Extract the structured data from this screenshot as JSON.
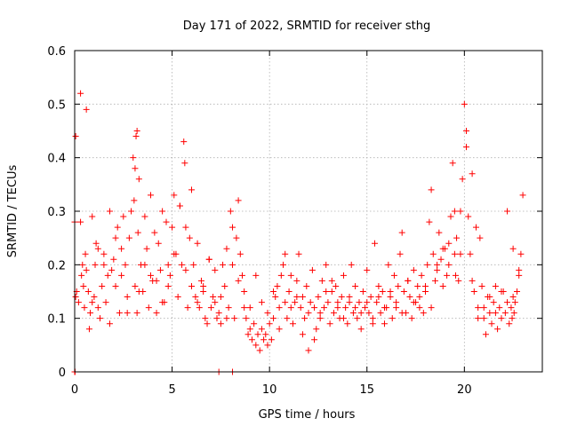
{
  "chart_data": {
    "type": "scatter",
    "title": "Day 171 of 2022, SRMTID for receiver sthg",
    "xlabel": "GPS time / hours",
    "ylabel": "SRMTID / TECUs",
    "xlim": [
      0,
      24
    ],
    "ylim": [
      0,
      0.6
    ],
    "xticks": [
      0,
      5,
      10,
      15,
      20
    ],
    "xtick_labels": [
      "0",
      "5",
      "10",
      "15",
      "20"
    ],
    "yticks": [
      0,
      0.1,
      0.2,
      0.3,
      0.4,
      0.5,
      0.6
    ],
    "ytick_labels": [
      "0",
      "0.1",
      "0.2",
      "0.3",
      "0.4",
      "0.5",
      "0.6"
    ],
    "grid": true,
    "marker": "+",
    "color": "#ff0000",
    "series": [
      {
        "name": "SRMTID",
        "x": [
          0.0,
          0.05,
          0.1,
          0.2,
          0.3,
          0.35,
          0.4,
          0.45,
          0.5,
          0.55,
          0.6,
          0.7,
          0.75,
          0.8,
          0.9,
          1.0,
          1.05,
          1.1,
          1.2,
          1.3,
          1.4,
          1.5,
          1.6,
          1.7,
          1.8,
          1.9,
          2.0,
          2.1,
          2.2,
          2.3,
          2.4,
          2.5,
          2.6,
          2.7,
          2.8,
          2.9,
          3.0,
          3.05,
          3.1,
          3.15,
          3.2,
          3.25,
          3.3,
          3.4,
          3.5,
          3.6,
          3.7,
          3.8,
          3.9,
          4.0,
          4.1,
          4.2,
          4.3,
          4.4,
          4.5,
          4.6,
          4.7,
          4.8,
          4.9,
          5.0,
          5.1,
          5.2,
          5.3,
          5.4,
          5.5,
          5.6,
          5.65,
          5.7,
          5.8,
          5.9,
          6.0,
          6.1,
          6.2,
          6.3,
          6.4,
          6.5,
          6.6,
          6.7,
          6.8,
          6.9,
          7.0,
          7.1,
          7.2,
          7.3,
          7.4,
          7.5,
          7.6,
          7.7,
          7.8,
          7.9,
          8.0,
          8.1,
          8.2,
          8.3,
          8.4,
          8.5,
          8.6,
          8.7,
          8.8,
          8.9,
          9.0,
          9.1,
          9.2,
          9.3,
          9.4,
          9.5,
          9.6,
          9.7,
          9.8,
          9.9,
          10.0,
          10.1,
          10.2,
          10.3,
          10.4,
          10.5,
          10.6,
          10.7,
          10.8,
          10.9,
          11.0,
          11.1,
          11.2,
          11.3,
          11.4,
          11.5,
          11.6,
          11.7,
          11.8,
          11.9,
          12.0,
          12.1,
          12.2,
          12.3,
          12.4,
          12.5,
          12.6,
          12.7,
          12.8,
          12.9,
          13.0,
          13.1,
          13.2,
          13.3,
          13.4,
          13.5,
          13.6,
          13.7,
          13.8,
          13.9,
          14.0,
          14.1,
          14.2,
          14.3,
          14.4,
          14.5,
          14.6,
          14.7,
          14.8,
          14.9,
          15.0,
          15.1,
          15.2,
          15.3,
          15.4,
          15.5,
          15.6,
          15.7,
          15.8,
          15.9,
          16.0,
          16.1,
          16.2,
          16.3,
          16.4,
          16.5,
          16.6,
          16.7,
          16.8,
          16.9,
          17.0,
          17.1,
          17.2,
          17.3,
          17.4,
          17.5,
          17.6,
          17.7,
          17.8,
          17.9,
          18.0,
          18.1,
          18.2,
          18.3,
          18.4,
          18.5,
          18.6,
          18.7,
          18.8,
          18.9,
          19.0,
          19.1,
          19.2,
          19.3,
          19.4,
          19.5,
          19.55,
          19.6,
          19.7,
          19.8,
          19.9,
          20.0,
          20.1,
          20.2,
          20.3,
          20.4,
          20.5,
          20.6,
          20.7,
          20.8,
          20.9,
          21.0,
          21.1,
          21.2,
          21.3,
          21.4,
          21.5,
          21.6,
          21.7,
          21.8,
          21.9,
          22.0,
          22.1,
          22.2,
          22.3,
          22.4,
          22.45,
          22.5,
          22.55,
          22.6,
          22.7,
          22.8,
          22.9,
          23.0,
          0.05,
          0.3,
          0.6,
          0.9,
          1.2,
          1.5,
          1.8,
          2.1,
          2.4,
          2.7,
          3.1,
          3.2,
          3.3,
          3.6,
          3.9,
          4.2,
          4.5,
          4.8,
          5.1,
          5.4,
          5.7,
          6.0,
          6.3,
          6.6,
          6.9,
          7.2,
          7.5,
          7.8,
          8.1,
          8.4,
          8.7,
          9.0,
          9.3,
          9.6,
          9.9,
          10.2,
          10.5,
          10.8,
          11.1,
          11.4,
          11.7,
          12.0,
          12.3,
          12.6,
          12.9,
          13.2,
          13.5,
          13.8,
          14.1,
          14.4,
          14.7,
          15.0,
          15.3,
          15.6,
          15.9,
          16.2,
          16.5,
          16.8,
          17.1,
          17.4,
          17.7,
          18.0,
          18.3,
          18.6,
          18.9,
          19.2,
          19.5,
          19.8,
          20.1,
          20.4,
          20.7,
          21.0,
          21.3,
          21.6,
          21.9,
          22.2,
          22.5,
          22.8,
          0.0,
          0.02,
          7.4,
          8.1
        ],
        "y": [
          0.28,
          0.14,
          0.15,
          0.13,
          0.28,
          0.18,
          0.2,
          0.16,
          0.12,
          0.22,
          0.19,
          0.15,
          0.08,
          0.11,
          0.13,
          0.14,
          0.2,
          0.24,
          0.12,
          0.1,
          0.16,
          0.22,
          0.13,
          0.18,
          0.09,
          0.19,
          0.21,
          0.16,
          0.27,
          0.11,
          0.23,
          0.29,
          0.2,
          0.14,
          0.25,
          0.3,
          0.4,
          0.32,
          0.38,
          0.44,
          0.45,
          0.26,
          0.36,
          0.2,
          0.15,
          0.29,
          0.23,
          0.12,
          0.33,
          0.17,
          0.26,
          0.11,
          0.24,
          0.19,
          0.3,
          0.13,
          0.28,
          0.2,
          0.18,
          0.27,
          0.33,
          0.22,
          0.14,
          0.31,
          0.2,
          0.43,
          0.39,
          0.19,
          0.12,
          0.25,
          0.16,
          0.2,
          0.14,
          0.13,
          0.12,
          0.17,
          0.15,
          0.1,
          0.09,
          0.21,
          0.12,
          0.14,
          0.13,
          0.1,
          0.11,
          0.09,
          0.2,
          0.16,
          0.1,
          0.12,
          0.3,
          0.27,
          0.1,
          0.25,
          0.32,
          0.22,
          0.18,
          0.12,
          0.1,
          0.07,
          0.08,
          0.06,
          0.09,
          0.05,
          0.07,
          0.04,
          0.08,
          0.06,
          0.07,
          0.05,
          0.09,
          0.06,
          0.1,
          0.14,
          0.16,
          0.12,
          0.18,
          0.2,
          0.13,
          0.1,
          0.15,
          0.12,
          0.09,
          0.13,
          0.17,
          0.22,
          0.12,
          0.14,
          0.1,
          0.16,
          0.11,
          0.13,
          0.19,
          0.12,
          0.08,
          0.14,
          0.1,
          0.17,
          0.12,
          0.2,
          0.13,
          0.09,
          0.15,
          0.11,
          0.16,
          0.12,
          0.1,
          0.14,
          0.18,
          0.12,
          0.09,
          0.13,
          0.2,
          0.11,
          0.16,
          0.1,
          0.13,
          0.08,
          0.15,
          0.12,
          0.19,
          0.11,
          0.14,
          0.1,
          0.24,
          0.13,
          0.16,
          0.11,
          0.15,
          0.09,
          0.12,
          0.2,
          0.14,
          0.1,
          0.18,
          0.13,
          0.16,
          0.22,
          0.26,
          0.15,
          0.11,
          0.17,
          0.14,
          0.1,
          0.19,
          0.13,
          0.16,
          0.12,
          0.18,
          0.11,
          0.15,
          0.2,
          0.28,
          0.34,
          0.22,
          0.17,
          0.19,
          0.26,
          0.21,
          0.16,
          0.23,
          0.18,
          0.24,
          0.29,
          0.39,
          0.22,
          0.18,
          0.25,
          0.17,
          0.3,
          0.36,
          0.5,
          0.42,
          0.29,
          0.22,
          0.37,
          0.15,
          0.27,
          0.12,
          0.25,
          0.16,
          0.1,
          0.07,
          0.14,
          0.11,
          0.09,
          0.13,
          0.16,
          0.08,
          0.12,
          0.1,
          0.15,
          0.11,
          0.13,
          0.09,
          0.12,
          0.1,
          0.14,
          0.11,
          0.13,
          0.15,
          0.18,
          0.22,
          0.33,
          0.44,
          0.52,
          0.49,
          0.29,
          0.23,
          0.2,
          0.3,
          0.25,
          0.18,
          0.11,
          0.16,
          0.11,
          0.15,
          0.2,
          0.18,
          0.17,
          0.13,
          0.16,
          0.22,
          0.31,
          0.27,
          0.34,
          0.24,
          0.16,
          0.21,
          0.19,
          0.14,
          0.23,
          0.2,
          0.17,
          0.15,
          0.12,
          0.18,
          0.13,
          0.11,
          0.15,
          0.08,
          0.22,
          0.18,
          0.14,
          0.07,
          0.04,
          0.06,
          0.11,
          0.15,
          0.17,
          0.13,
          0.1,
          0.14,
          0.12,
          0.11,
          0.13,
          0.09,
          0.14,
          0.12,
          0.15,
          0.12,
          0.11,
          0.17,
          0.13,
          0.14,
          0.16,
          0.12,
          0.2,
          0.23,
          0.2,
          0.3,
          0.22,
          0.45,
          0.17,
          0.1,
          0.12,
          0.14,
          0.11,
          0.15,
          0.3,
          0.23,
          0.19,
          0.0,
          0.0,
          0.0,
          0.0
        ]
      }
    ]
  }
}
